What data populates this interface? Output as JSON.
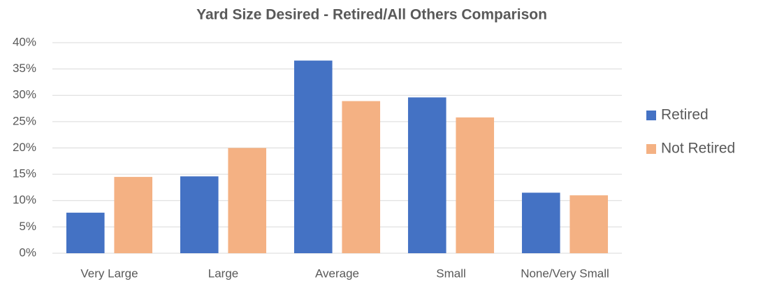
{
  "chart_data": {
    "type": "bar",
    "title": "Yard Size Desired - Retired/All Others Comparison",
    "categories": [
      "Very Large",
      "Large",
      "Average",
      "Small",
      "None/Very Small"
    ],
    "series": [
      {
        "name": "Retired",
        "color": "#4472c4",
        "values": [
          7.7,
          14.6,
          36.6,
          29.6,
          11.5
        ]
      },
      {
        "name": "Not Retired",
        "color": "#f4b183",
        "values": [
          14.5,
          20,
          28.9,
          25.8,
          11
        ]
      }
    ],
    "ylim": [
      0,
      40
    ],
    "yticks": [
      {
        "value": 0,
        "label": "0%"
      },
      {
        "value": 5,
        "label": "5%"
      },
      {
        "value": 10,
        "label": "10%"
      },
      {
        "value": 15,
        "label": "15%"
      },
      {
        "value": 20,
        "label": "20%"
      },
      {
        "value": 25,
        "label": "25%"
      },
      {
        "value": 30,
        "label": "30%"
      },
      {
        "value": 35,
        "label": "35%"
      },
      {
        "value": 40,
        "label": "40%"
      }
    ],
    "grid": true,
    "legend": "right"
  }
}
